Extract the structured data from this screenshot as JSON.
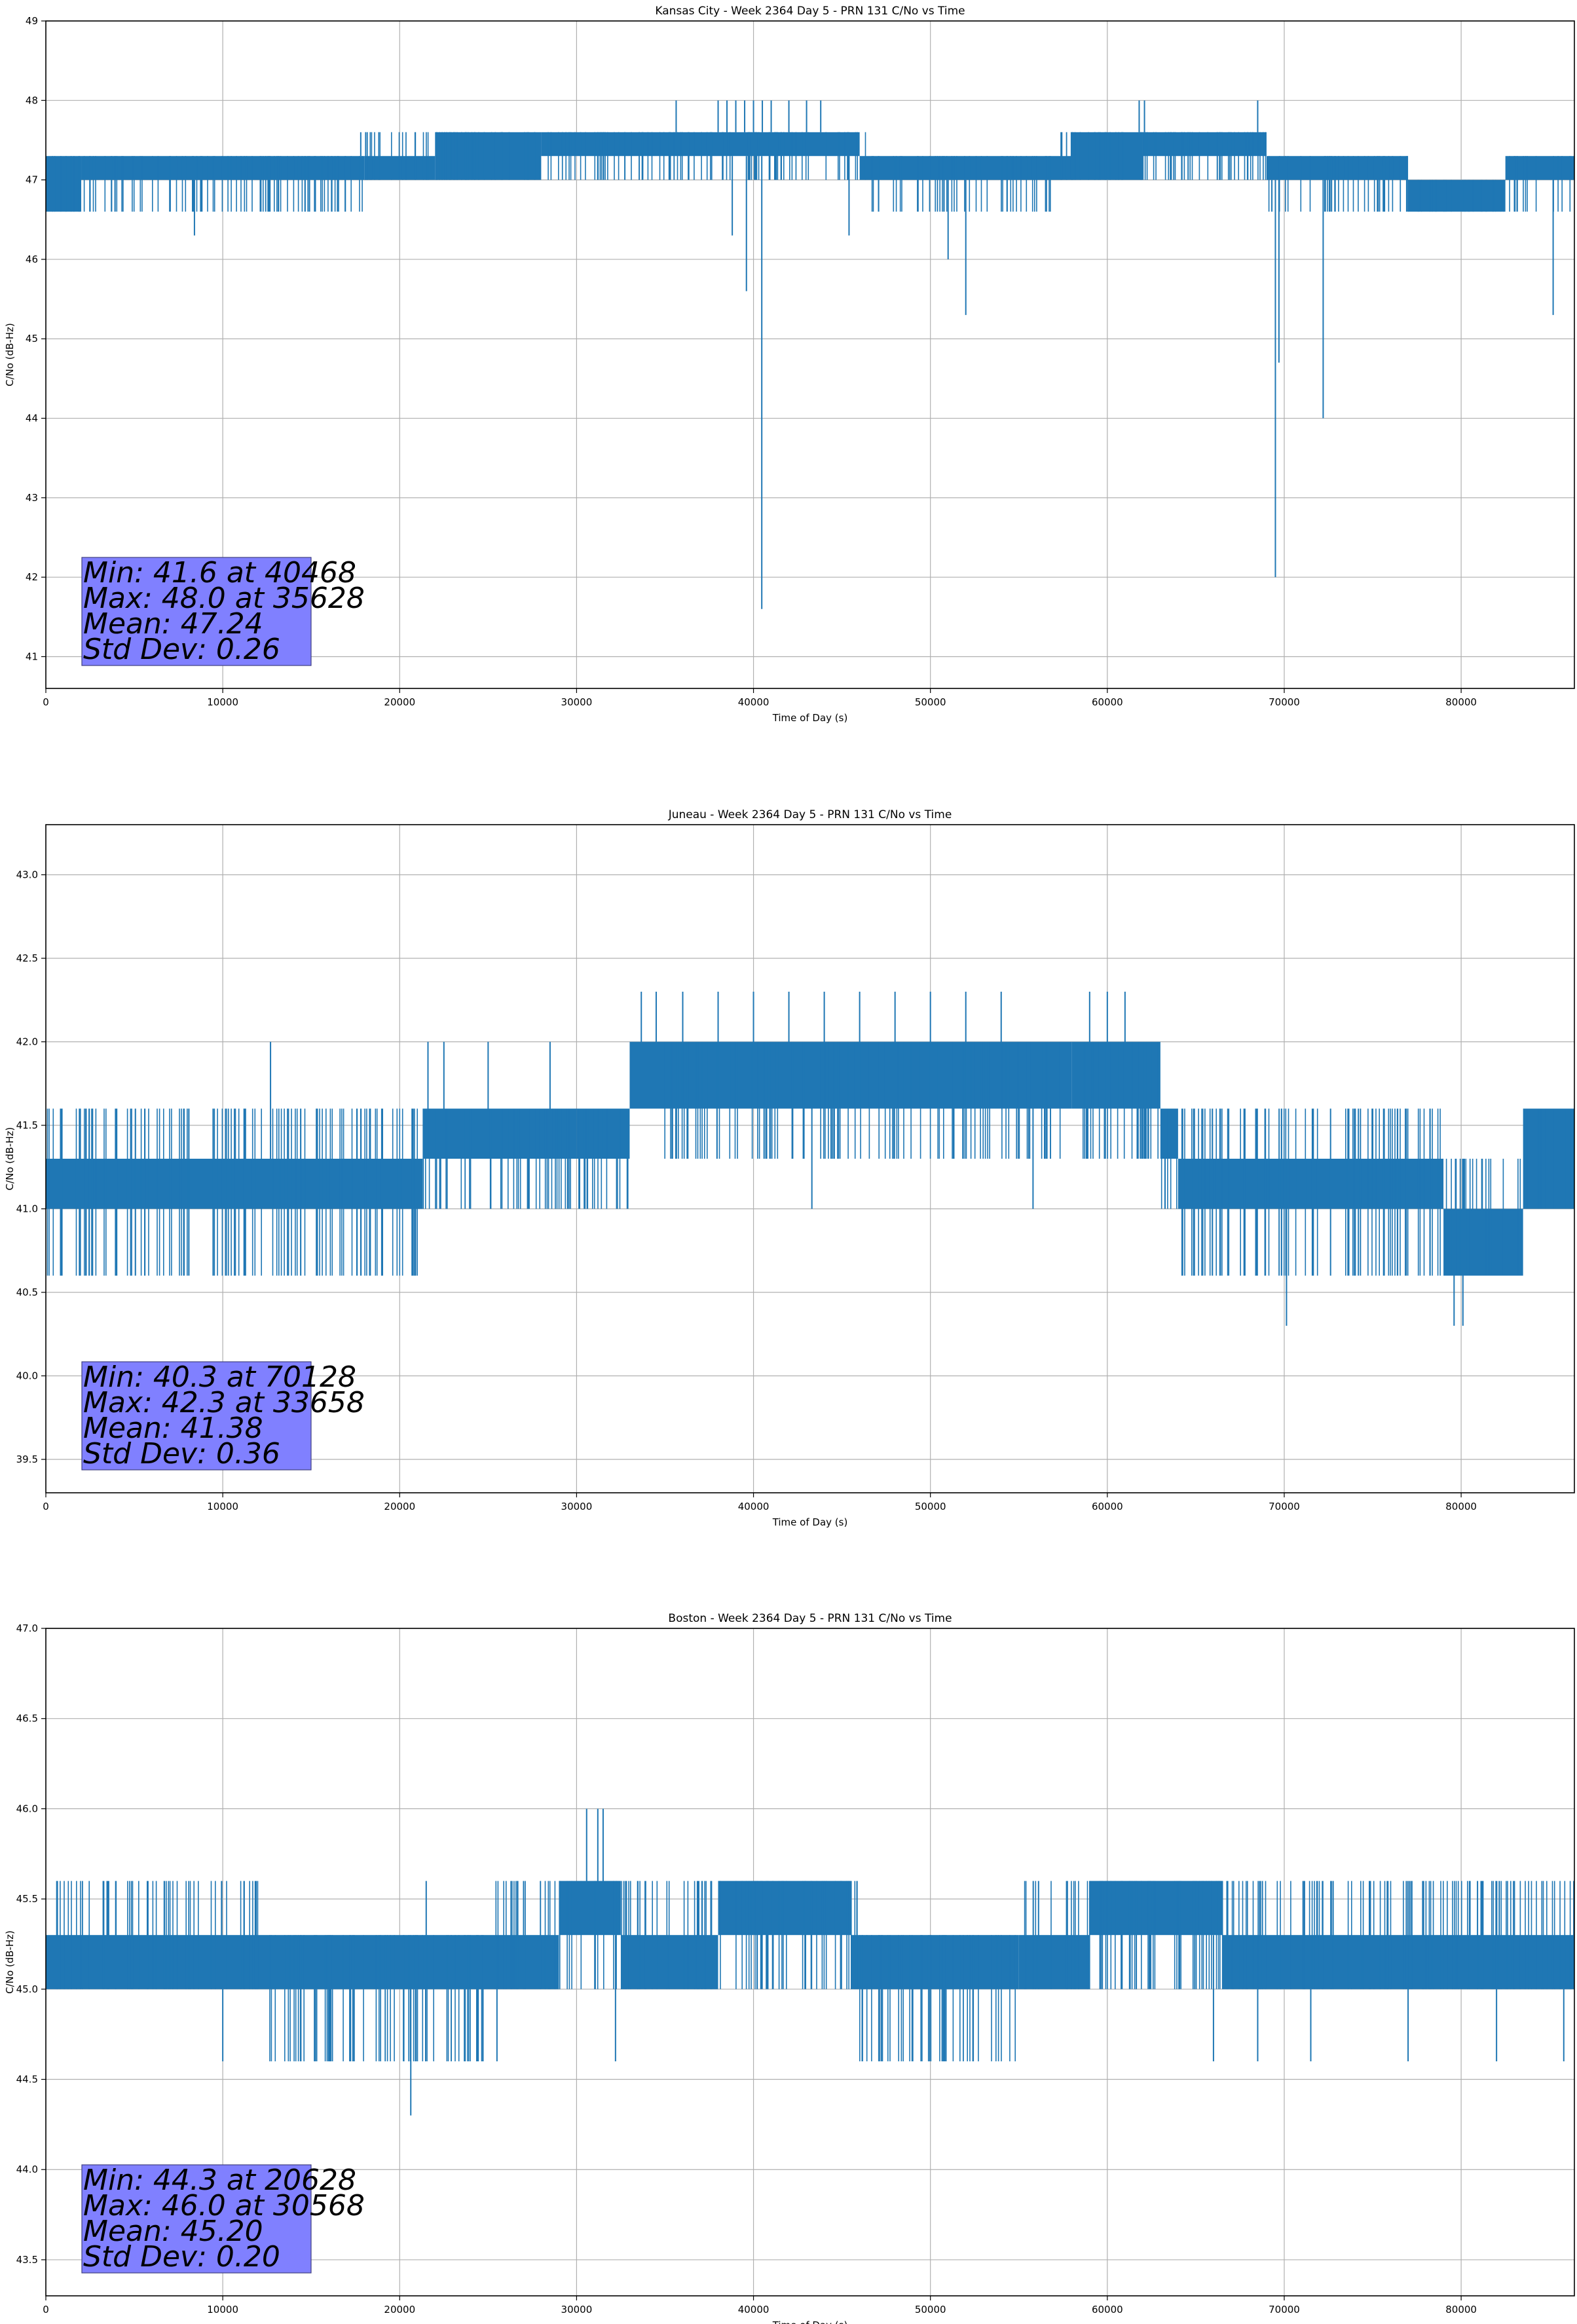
{
  "chart_data": [
    {
      "type": "line",
      "title": "Kansas City - Week 2364 Day 5 - PRN 131 C/No vs Time",
      "xlabel": "Time of Day (s)",
      "ylabel": "C/No (dB-Hz)",
      "xlim": [
        0,
        86400
      ],
      "ylim": [
        40.6,
        49
      ],
      "grid": true,
      "series_color": "#1f77b4",
      "xticks": [
        0,
        10000,
        20000,
        30000,
        40000,
        50000,
        60000,
        70000,
        80000
      ],
      "xtick_labels": [
        "0",
        "10000",
        "20000",
        "30000",
        "40000",
        "50000",
        "60000",
        "70000",
        "80000"
      ],
      "yticks": [
        41,
        42,
        43,
        44,
        45,
        46,
        47,
        48,
        49
      ],
      "ytick_labels": [
        "41",
        "42",
        "43",
        "44",
        "45",
        "46",
        "47",
        "48",
        "49"
      ],
      "stats": [
        "Min: 41.6 at 40468",
        "Max: 48.0 at 35628",
        "Mean: 47.24",
        "Std Dev: 0.26"
      ],
      "stats_box_color": "#8080ff",
      "segments": [
        {
          "x": [
            0,
            2000
          ],
          "lo": 46.6,
          "hi": 47.3
        },
        {
          "x": [
            2000,
            18000
          ],
          "lo": 47.0,
          "hi": 47.3
        },
        {
          "x": [
            18000,
            22000
          ],
          "lo": 47.0,
          "hi": 47.3
        },
        {
          "x": [
            22000,
            28000
          ],
          "lo": 47.0,
          "hi": 47.6
        },
        {
          "x": [
            28000,
            31500
          ],
          "lo": 47.3,
          "hi": 47.6
        },
        {
          "x": [
            31500,
            46000
          ],
          "lo": 47.3,
          "hi": 47.6
        },
        {
          "x": [
            46000,
            54000
          ],
          "lo": 47.0,
          "hi": 47.3
        },
        {
          "x": [
            54000,
            58000
          ],
          "lo": 47.0,
          "hi": 47.3
        },
        {
          "x": [
            58000,
            62000
          ],
          "lo": 47.0,
          "hi": 47.6
        },
        {
          "x": [
            62000,
            69000
          ],
          "lo": 47.3,
          "hi": 47.6
        },
        {
          "x": [
            69000,
            77000
          ],
          "lo": 47.0,
          "hi": 47.3
        },
        {
          "x": [
            77000,
            82500
          ],
          "lo": 46.6,
          "hi": 47.0
        },
        {
          "x": [
            82500,
            86400
          ],
          "lo": 47.0,
          "hi": 47.3
        }
      ],
      "ranges": [
        {
          "x": [
            0,
            1800
          ],
          "lo": 46.6,
          "hi": 47.3
        },
        {
          "x": [
            1800,
            18000
          ],
          "lo": 46.6,
          "hi": 47.3
        },
        {
          "x": [
            18000,
            31000
          ],
          "lo": 47.0,
          "hi": 47.6
        },
        {
          "x": [
            31000,
            46500
          ],
          "lo": 47.0,
          "hi": 47.6
        },
        {
          "x": [
            46500,
            54000
          ],
          "lo": 46.6,
          "hi": 47.3
        },
        {
          "x": [
            54000,
            57000
          ],
          "lo": 46.6,
          "hi": 47.3
        },
        {
          "x": [
            57000,
            69000
          ],
          "lo": 47.0,
          "hi": 47.6
        },
        {
          "x": [
            69000,
            77000
          ],
          "lo": 46.6,
          "hi": 47.3
        },
        {
          "x": [
            77000,
            82500
          ],
          "lo": 46.6,
          "hi": 47.0
        },
        {
          "x": [
            82500,
            86400
          ],
          "lo": 46.6,
          "hi": 47.3
        }
      ],
      "spikes": [
        {
          "x": 8400,
          "y": 46.3
        },
        {
          "x": 17800,
          "y": 47.6
        },
        {
          "x": 35628,
          "y": 48.0
        },
        {
          "x": 38000,
          "y": 48.0
        },
        {
          "x": 38500,
          "y": 48.0
        },
        {
          "x": 39000,
          "y": 48.0
        },
        {
          "x": 39500,
          "y": 48.0
        },
        {
          "x": 40000,
          "y": 48.0
        },
        {
          "x": 40500,
          "y": 48.0
        },
        {
          "x": 41000,
          "y": 48.0
        },
        {
          "x": 42000,
          "y": 48.0
        },
        {
          "x": 43000,
          "y": 48.0
        },
        {
          "x": 43800,
          "y": 48.0
        },
        {
          "x": 38800,
          "y": 46.3
        },
        {
          "x": 39600,
          "y": 45.6
        },
        {
          "x": 40468,
          "y": 41.6
        },
        {
          "x": 45400,
          "y": 46.3
        },
        {
          "x": 51000,
          "y": 46.0
        },
        {
          "x": 52000,
          "y": 45.3
        },
        {
          "x": 61800,
          "y": 48.0
        },
        {
          "x": 62100,
          "y": 48.0
        },
        {
          "x": 68500,
          "y": 48.0
        },
        {
          "x": 69300,
          "y": 46.6
        },
        {
          "x": 69500,
          "y": 42.0
        },
        {
          "x": 69700,
          "y": 44.7
        },
        {
          "x": 72200,
          "y": 44.0
        },
        {
          "x": 85200,
          "y": 45.3
        }
      ]
    },
    {
      "type": "line",
      "title": "Juneau - Week 2364 Day 5 - PRN 131 C/No vs Time",
      "xlabel": "Time of Day (s)",
      "ylabel": "C/No (dB-Hz)",
      "xlim": [
        0,
        86400
      ],
      "ylim": [
        39.3,
        43.3
      ],
      "grid": true,
      "series_color": "#1f77b4",
      "xticks": [
        0,
        10000,
        20000,
        30000,
        40000,
        50000,
        60000,
        70000,
        80000
      ],
      "xtick_labels": [
        "0",
        "10000",
        "20000",
        "30000",
        "40000",
        "50000",
        "60000",
        "70000",
        "80000"
      ],
      "yticks": [
        39.5,
        40.0,
        40.5,
        41.0,
        41.5,
        42.0,
        42.5,
        43.0
      ],
      "ytick_labels": [
        "39.5",
        "40.0",
        "40.5",
        "41.0",
        "41.5",
        "42.0",
        "42.5",
        "43.0"
      ],
      "stats": [
        "Min: 40.3 at 70128",
        "Max: 42.3 at 33658",
        "Mean: 41.38",
        "Std Dev: 0.36"
      ],
      "stats_box_color": "#8080ff",
      "segments": [
        {
          "x": [
            0,
            21300
          ],
          "lo": 41.0,
          "hi": 41.3
        },
        {
          "x": [
            21300,
            30000
          ],
          "lo": 41.3,
          "hi": 41.6
        },
        {
          "x": [
            30000,
            33000
          ],
          "lo": 41.3,
          "hi": 41.6
        },
        {
          "x": [
            33000,
            58000
          ],
          "lo": 41.6,
          "hi": 42.0
        },
        {
          "x": [
            58000,
            63000
          ],
          "lo": 41.6,
          "hi": 42.0
        },
        {
          "x": [
            63000,
            64000
          ],
          "lo": 41.3,
          "hi": 41.6
        },
        {
          "x": [
            64000,
            79000
          ],
          "lo": 41.0,
          "hi": 41.3
        },
        {
          "x": [
            79000,
            83500
          ],
          "lo": 40.6,
          "hi": 41.0
        },
        {
          "x": [
            83500,
            86400
          ],
          "lo": 41.0,
          "hi": 41.6
        }
      ],
      "ranges": [
        {
          "x": [
            0,
            21300
          ],
          "lo": 40.6,
          "hi": 41.6
        },
        {
          "x": [
            21300,
            33000
          ],
          "lo": 41.0,
          "hi": 41.6
        },
        {
          "x": [
            33000,
            63000
          ],
          "lo": 41.3,
          "hi": 42.0
        },
        {
          "x": [
            63000,
            64000
          ],
          "lo": 41.0,
          "hi": 41.6
        },
        {
          "x": [
            64000,
            79000
          ],
          "lo": 40.6,
          "hi": 41.6
        },
        {
          "x": [
            79000,
            83500
          ],
          "lo": 40.6,
          "hi": 41.3
        },
        {
          "x": [
            83500,
            86400
          ],
          "lo": 41.0,
          "hi": 41.6
        }
      ],
      "spikes": [
        {
          "x": 12700,
          "y": 42.0
        },
        {
          "x": 20900,
          "y": 40.6
        },
        {
          "x": 21600,
          "y": 42.0
        },
        {
          "x": 22500,
          "y": 42.0
        },
        {
          "x": 25000,
          "y": 42.0
        },
        {
          "x": 28500,
          "y": 42.0
        },
        {
          "x": 33658,
          "y": 42.3
        },
        {
          "x": 34500,
          "y": 42.3
        },
        {
          "x": 36000,
          "y": 42.3
        },
        {
          "x": 38000,
          "y": 42.3
        },
        {
          "x": 40000,
          "y": 42.3
        },
        {
          "x": 42000,
          "y": 42.3
        },
        {
          "x": 44000,
          "y": 42.3
        },
        {
          "x": 43300,
          "y": 41.0
        },
        {
          "x": 46000,
          "y": 42.3
        },
        {
          "x": 48000,
          "y": 42.3
        },
        {
          "x": 50000,
          "y": 42.3
        },
        {
          "x": 52000,
          "y": 42.3
        },
        {
          "x": 54000,
          "y": 42.3
        },
        {
          "x": 55800,
          "y": 41.0
        },
        {
          "x": 59000,
          "y": 42.3
        },
        {
          "x": 60000,
          "y": 42.3
        },
        {
          "x": 61000,
          "y": 42.3
        },
        {
          "x": 70128,
          "y": 40.3
        },
        {
          "x": 75000,
          "y": 41.6
        },
        {
          "x": 79600,
          "y": 40.3
        },
        {
          "x": 80100,
          "y": 40.3
        }
      ]
    },
    {
      "type": "line",
      "title": "Boston - Week 2364 Day 5 - PRN 131 C/No vs Time",
      "xlabel": "Time of Day (s)",
      "ylabel": "C/No (dB-Hz)",
      "xlim": [
        0,
        86400
      ],
      "ylim": [
        43.3,
        47.0
      ],
      "grid": true,
      "series_color": "#1f77b4",
      "xticks": [
        0,
        10000,
        20000,
        30000,
        40000,
        50000,
        60000,
        70000,
        80000
      ],
      "xtick_labels": [
        "0",
        "10000",
        "20000",
        "30000",
        "40000",
        "50000",
        "60000",
        "70000",
        "80000"
      ],
      "yticks": [
        43.5,
        44.0,
        44.5,
        45.0,
        45.5,
        46.0,
        46.5,
        47.0
      ],
      "ytick_labels": [
        "43.5",
        "44.0",
        "44.5",
        "45.0",
        "45.5",
        "46.0",
        "46.5",
        "47.0"
      ],
      "stats": [
        "Min: 44.3 at 20628",
        "Max: 46.0 at 30568",
        "Mean: 45.20",
        "Std Dev: 0.20"
      ],
      "stats_box_color": "#8080ff",
      "segments": [
        {
          "x": [
            0,
            29000
          ],
          "lo": 45.0,
          "hi": 45.3
        },
        {
          "x": [
            29000,
            32500
          ],
          "lo": 45.3,
          "hi": 45.6
        },
        {
          "x": [
            32500,
            38000
          ],
          "lo": 45.0,
          "hi": 45.3
        },
        {
          "x": [
            38000,
            45500
          ],
          "lo": 45.3,
          "hi": 45.6
        },
        {
          "x": [
            45500,
            55000
          ],
          "lo": 45.0,
          "hi": 45.3
        },
        {
          "x": [
            55000,
            59000
          ],
          "lo": 45.0,
          "hi": 45.3
        },
        {
          "x": [
            59000,
            66500
          ],
          "lo": 45.3,
          "hi": 45.6
        },
        {
          "x": [
            66500,
            86400
          ],
          "lo": 45.0,
          "hi": 45.3
        }
      ],
      "ranges": [
        {
          "x": [
            0,
            12000
          ],
          "lo": 45.0,
          "hi": 45.6
        },
        {
          "x": [
            12000,
            25000
          ],
          "lo": 44.6,
          "hi": 45.3
        },
        {
          "x": [
            25000,
            29000
          ],
          "lo": 45.0,
          "hi": 45.6
        },
        {
          "x": [
            29000,
            46000
          ],
          "lo": 45.0,
          "hi": 45.6
        },
        {
          "x": [
            46000,
            55000
          ],
          "lo": 44.6,
          "hi": 45.3
        },
        {
          "x": [
            55000,
            67000
          ],
          "lo": 45.0,
          "hi": 45.6
        },
        {
          "x": [
            67000,
            86400
          ],
          "lo": 45.0,
          "hi": 45.6
        }
      ],
      "spikes": [
        {
          "x": 10000,
          "y": 44.6
        },
        {
          "x": 20628,
          "y": 44.3
        },
        {
          "x": 21500,
          "y": 45.6
        },
        {
          "x": 25500,
          "y": 44.6
        },
        {
          "x": 30568,
          "y": 46.0
        },
        {
          "x": 31200,
          "y": 46.0
        },
        {
          "x": 31500,
          "y": 46.0
        },
        {
          "x": 32200,
          "y": 44.6
        },
        {
          "x": 49000,
          "y": 44.6
        },
        {
          "x": 66000,
          "y": 44.6
        },
        {
          "x": 68500,
          "y": 44.6
        },
        {
          "x": 71500,
          "y": 44.6
        },
        {
          "x": 77000,
          "y": 44.6
        },
        {
          "x": 80500,
          "y": 45.6
        },
        {
          "x": 82000,
          "y": 44.6
        },
        {
          "x": 85800,
          "y": 44.6
        }
      ]
    }
  ]
}
